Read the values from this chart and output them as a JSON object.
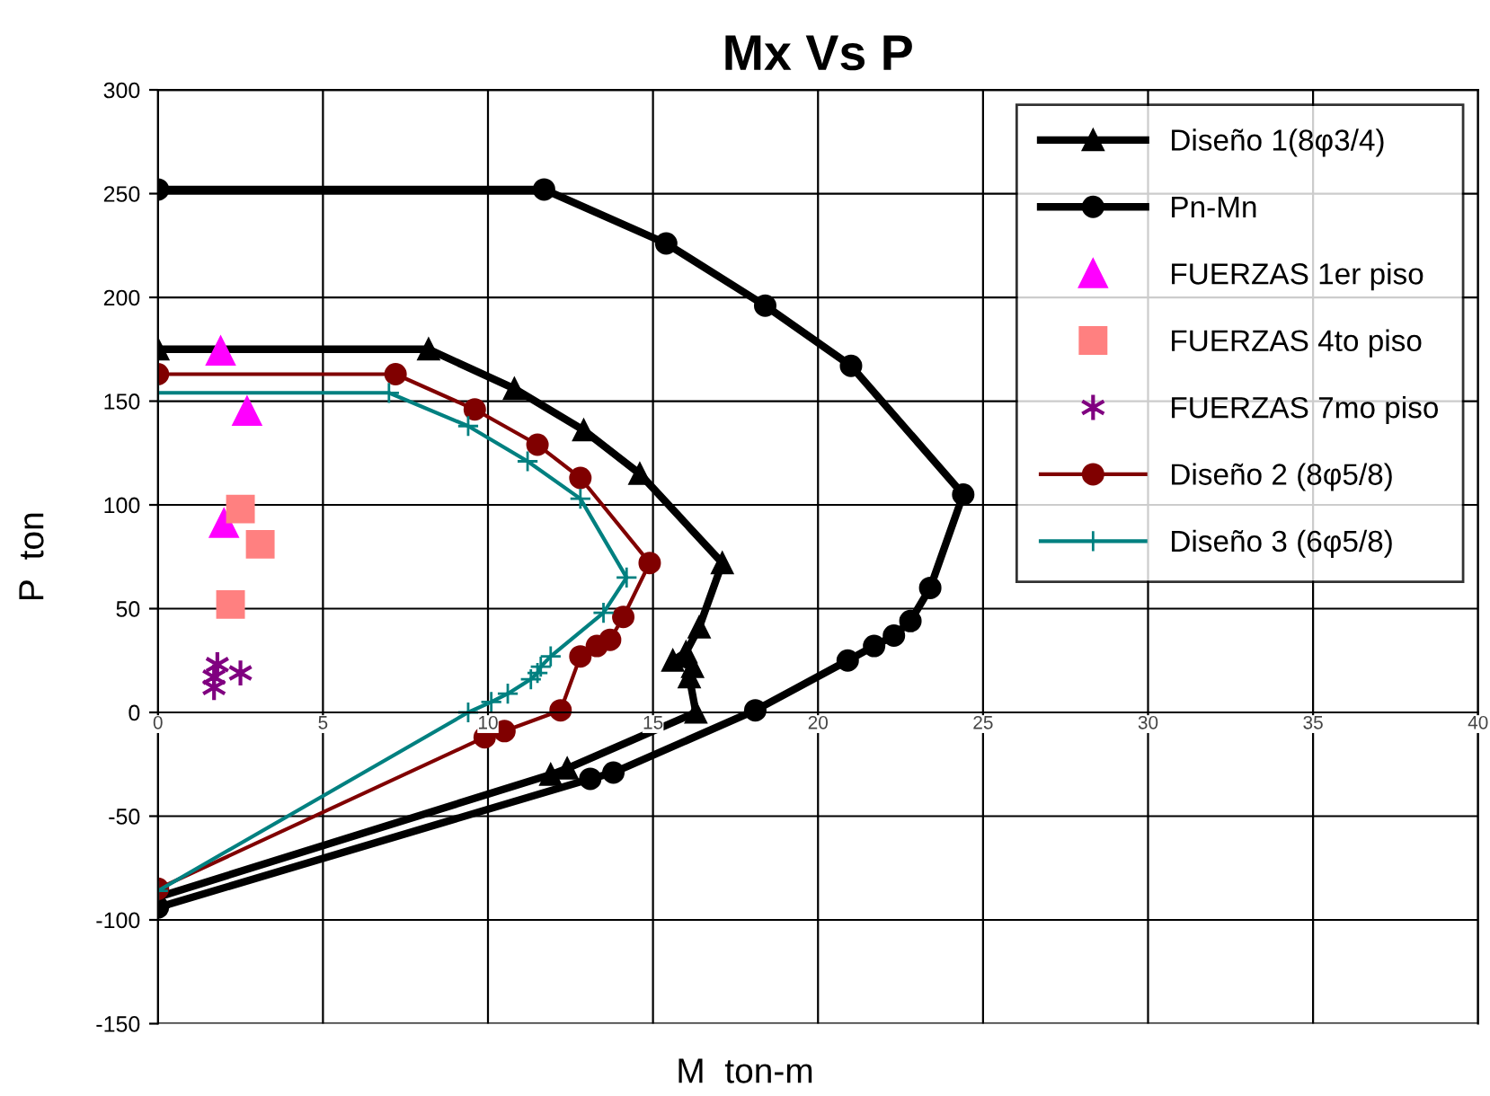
{
  "chart_data": {
    "type": "line",
    "title": "Mx Vs P",
    "xlabel": "M  ton-m",
    "ylabel": "P  ton",
    "xlim": [
      0,
      40
    ],
    "xticks": [
      0,
      5,
      10,
      15,
      20,
      25,
      30,
      35,
      40
    ],
    "ylim": [
      -150,
      300
    ],
    "yticks": [
      -150,
      -100,
      -50,
      0,
      50,
      100,
      150,
      200,
      250,
      300
    ],
    "grid": true,
    "legend": "top right",
    "series": [
      {
        "name": "Diseño 1(8φ3/4)",
        "type": "line",
        "color": "#000000",
        "marker": "triangle",
        "x": [
          0,
          8.2,
          10.8,
          12.9,
          14.6,
          17.1,
          16.4,
          16.0,
          15.6,
          16.2,
          16.1,
          16.3,
          12.4,
          11.9,
          0
        ],
        "values": [
          175,
          175,
          156,
          136,
          115,
          72,
          41,
          29,
          25,
          22,
          17,
          0,
          -27,
          -30,
          -89
        ]
      },
      {
        "name": "Pn-Mn",
        "type": "line",
        "color": "#000000",
        "marker": "circle",
        "x": [
          0,
          11.7,
          15.4,
          18.4,
          21.0,
          24.4,
          23.4,
          22.8,
          22.3,
          21.7,
          20.9,
          18.1,
          13.8,
          13.1,
          0
        ],
        "values": [
          252,
          252,
          226,
          196,
          167,
          105,
          60,
          44,
          37,
          32,
          25,
          1,
          -29,
          -32,
          -94
        ]
      },
      {
        "name": "FUERZAS 1er piso",
        "type": "scatter",
        "color": "#ff00ff",
        "marker": "triangle",
        "x": [
          1.9,
          2.7,
          2.0
        ],
        "values": [
          174,
          145,
          91
        ]
      },
      {
        "name": "FUERZAS 4to piso",
        "type": "scatter",
        "color": "#ff8080",
        "marker": "square",
        "x": [
          2.5,
          3.1,
          2.2
        ],
        "values": [
          98,
          81,
          52
        ]
      },
      {
        "name": "FUERZAS 7mo piso",
        "type": "scatter",
        "color": "#800080",
        "marker": "cross",
        "x": [
          1.8,
          2.5,
          1.7,
          1.7
        ],
        "values": [
          23,
          19,
          17,
          12
        ]
      },
      {
        "name": "Diseño 2 (8φ5/8)",
        "type": "line",
        "color": "#800000",
        "marker": "circle",
        "x": [
          0,
          7.2,
          9.6,
          11.5,
          12.8,
          14.9,
          14.1,
          13.7,
          13.3,
          12.8,
          12.2,
          10.5,
          9.9,
          0
        ],
        "values": [
          163,
          163,
          146,
          129,
          113,
          72,
          46,
          35,
          32,
          27,
          1,
          -9,
          -12,
          -85
        ]
      },
      {
        "name": "Diseño 3 (6φ5/8)",
        "type": "line",
        "color": "#008080",
        "marker": "cross",
        "x": [
          0,
          7.0,
          9.4,
          11.2,
          12.8,
          14.2,
          13.5,
          11.9,
          11.6,
          11.5,
          11.3,
          10.6,
          10.1,
          9.4,
          0
        ],
        "values": [
          154,
          154,
          138,
          121,
          103,
          65,
          48,
          27,
          22,
          19,
          16,
          9,
          5,
          0,
          -86
        ]
      }
    ]
  }
}
